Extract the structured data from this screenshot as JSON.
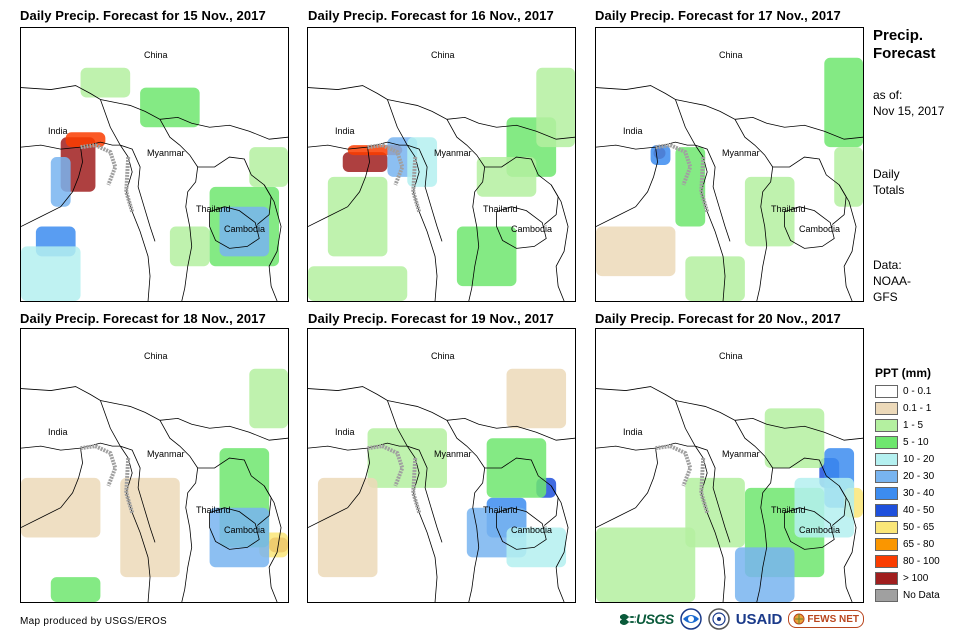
{
  "panels": [
    {
      "title": "Daily Precip. Forecast for 15 Nov., 2017",
      "labels": {
        "china": "China",
        "india": "India",
        "myanmar": "Myanmar",
        "thailand": "Thailand",
        "cambodia": "Cambodia"
      }
    },
    {
      "title": "Daily Precip. Forecast for 16 Nov., 2017",
      "labels": {
        "china": "China",
        "india": "India",
        "myanmar": "Myanmar",
        "thailand": "Thailand",
        "cambodia": "Cambodia"
      }
    },
    {
      "title": "Daily Precip. Forecast for 17 Nov., 2017",
      "labels": {
        "china": "China",
        "india": "India",
        "myanmar": "Myanmar",
        "thailand": "Thailand",
        "cambodia": "Cambodia"
      }
    },
    {
      "title": "Daily Precip. Forecast for 18 Nov., 2017",
      "labels": {
        "china": "China",
        "india": "India",
        "myanmar": "Myanmar",
        "thailand": "Thailand",
        "cambodia": "Cambodia"
      }
    },
    {
      "title": "Daily Precip. Forecast for 19 Nov., 2017",
      "labels": {
        "china": "China",
        "india": "India",
        "myanmar": "Myanmar",
        "thailand": "Thailand",
        "cambodia": "Cambodia"
      }
    },
    {
      "title": "Daily Precip. Forecast for 20 Nov., 2017",
      "labels": {
        "china": "China",
        "india": "India",
        "myanmar": "Myanmar",
        "thailand": "Thailand",
        "cambodia": "Cambodia"
      }
    }
  ],
  "sidebar": {
    "title_line1": "Precip.",
    "title_line2": "Forecast",
    "asof_line1": "as of:",
    "asof_line2": "Nov 15, 2017",
    "daily_line1": "Daily",
    "daily_line2": "Totals",
    "data_line1": "Data:",
    "data_line2": "NOAA-",
    "data_line3": "GFS"
  },
  "legend": {
    "title": "PPT (mm)",
    "items": [
      {
        "label": "0 - 0.1",
        "color": "#ffffff"
      },
      {
        "label": "0.1 - 1",
        "color": "#ecd9b9"
      },
      {
        "label": "1 - 5",
        "color": "#b4f0a0"
      },
      {
        "label": "5 - 10",
        "color": "#6ee66e"
      },
      {
        "label": "10 - 20",
        "color": "#b4f0f0"
      },
      {
        "label": "20 - 30",
        "color": "#78b4f0"
      },
      {
        "label": "30 - 40",
        "color": "#3c8cf0"
      },
      {
        "label": "40 - 50",
        "color": "#1e50dc"
      },
      {
        "label": "50 - 65",
        "color": "#fae678"
      },
      {
        "label": "65 - 80",
        "color": "#fa9600"
      },
      {
        "label": "80 - 100",
        "color": "#fa3c00"
      },
      {
        "label": "> 100",
        "color": "#a01e1e"
      },
      {
        "label": "No Data",
        "color": "#a0a0a0"
      }
    ]
  },
  "footer": {
    "credit": "Map produced by USGS/EROS",
    "logo_usgs": "USGS",
    "logo_usaid": "USAID",
    "logo_fews": "FEWS NET"
  }
}
